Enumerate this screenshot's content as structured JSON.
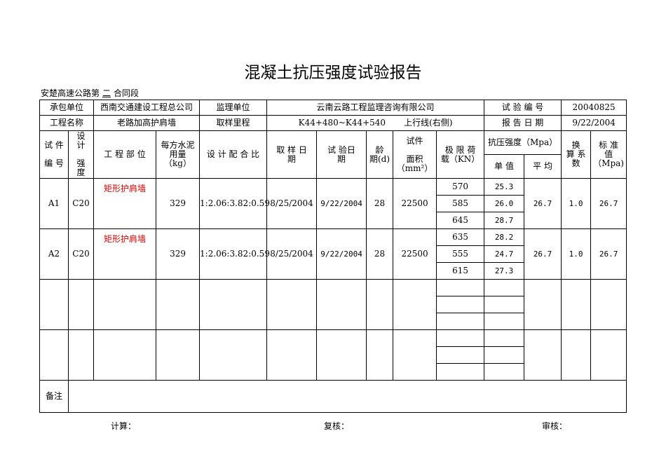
{
  "title": "混凝土抗压强度试验报告",
  "section": {
    "prefix": "安楚高速公路第",
    "number": "二",
    "suffix": "合同段"
  },
  "info": {
    "contractor_label": "承包单位",
    "contractor": "西南交通建设工程总公司",
    "supervisor_label": "监理单位",
    "supervisor": "云南云路工程监理咨询有限公司",
    "test_no_label": "试 验 编 号",
    "test_no": "20040825",
    "project_label": "工程名称",
    "project": "老路加高护肩墙",
    "mileage_label": "取样里程",
    "mileage": "K44+480~K44+540",
    "side": "上行线(右侧)",
    "report_date_label": "报 告 日 期",
    "report_date": "9/22/2004"
  },
  "headers": {
    "specimen_no": "试 件\n\n编 号",
    "design_strength": "设\n计\n\n强\n度",
    "location": "工 程 部 位",
    "cement": "每方水泥\n用量\n（kg）",
    "mix": "设 计 配 合 比",
    "sample_date": "取 样 日\n期",
    "test_date": "试 验日\n期",
    "age": "龄\n期(d)",
    "area": "试件\n\n面积\n（mm²）",
    "load": "极 限 荷\n载（KN）",
    "strength": "抗压强度（Mpa）",
    "single": "单 值",
    "avg": "平 均",
    "factor": "换\n算 系\n数",
    "standard": "标 准\n值\n（Mpa)"
  },
  "rows": [
    {
      "id": "A1",
      "grade": "C20",
      "location": "矩形护肩墙",
      "cement": "329",
      "mix": "1:2.06:3.82:0.59",
      "sample_date": "8/25/2004",
      "test_date": "9/22/2004",
      "age": "28",
      "area": "22500",
      "loads": [
        "570",
        "585",
        "645"
      ],
      "singles": [
        "25.3",
        "26.0",
        "28.7"
      ],
      "avg": "26.7",
      "factor": "1.0",
      "standard": "26.7"
    },
    {
      "id": "A2",
      "grade": "C20",
      "location": "矩形护肩墙",
      "cement": "329",
      "mix": "1:2.06:3.82:0.59",
      "sample_date": "8/25/2004",
      "test_date": "9/22/2004",
      "age": "28",
      "area": "22500",
      "loads": [
        "635",
        "555",
        "615"
      ],
      "singles": [
        "28.2",
        "24.7",
        "27.3"
      ],
      "avg": "26.7",
      "factor": "1.0",
      "standard": "26.7"
    }
  ],
  "remarks_label": "备注",
  "footer": {
    "calc": "计算：",
    "review": "复核：",
    "audit": "审核："
  }
}
